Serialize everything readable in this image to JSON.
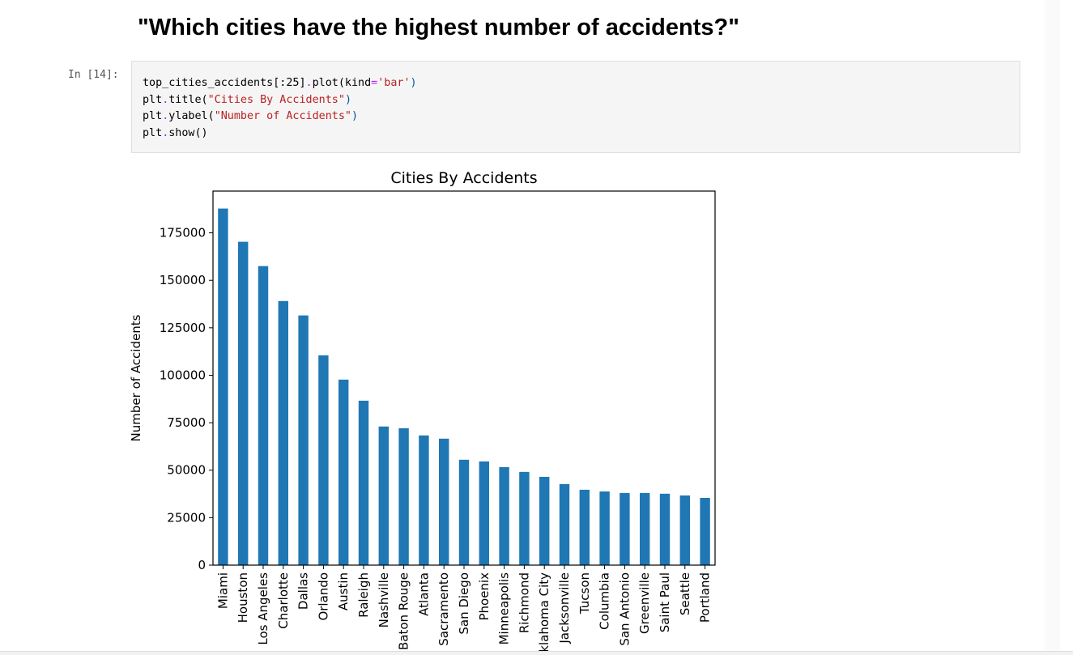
{
  "heading": "\"Which cities have the highest number of accidents?\"",
  "cell": {
    "prompt": "In [14]:",
    "code_lines": [
      [
        "top_cities_accidents[:25]",
        ".",
        "plot(kind",
        "=",
        "'bar'",
        ")"
      ],
      [
        "plt",
        ".",
        "title(",
        "\"Cities By Accidents\"",
        ")"
      ],
      [
        "plt",
        ".",
        "ylabel(",
        "\"Number of Accidents\"",
        ")"
      ],
      [
        "plt",
        ".",
        "show()"
      ]
    ]
  },
  "chart_data": {
    "type": "bar",
    "title": "Cities By Accidents",
    "xlabel": "",
    "ylabel": "Number of Accidents",
    "ylim": [
      0,
      197000
    ],
    "yticks": [
      0,
      25000,
      50000,
      75000,
      100000,
      125000,
      150000,
      175000
    ],
    "bar_color": "#1f77b4",
    "categories": [
      "Miami",
      "Houston",
      "Los Angeles",
      "Charlotte",
      "Dallas",
      "Orlando",
      "Austin",
      "Raleigh",
      "Nashville",
      "Baton Rouge",
      "Atlanta",
      "Sacramento",
      "San Diego",
      "Phoenix",
      "Minneapolis",
      "Richmond",
      "Oklahoma City",
      "Jacksonville",
      "Tucson",
      "Columbia",
      "San Antonio",
      "Greenville",
      "Saint Paul",
      "Seattle",
      "Portland"
    ],
    "values": [
      187800,
      170300,
      157500,
      139100,
      131500,
      110500,
      97700,
      86600,
      73000,
      72100,
      68300,
      66600,
      55500,
      54600,
      51600,
      49100,
      46500,
      42700,
      39700,
      38800,
      38000,
      38000,
      37600,
      36700,
      35400
    ]
  }
}
